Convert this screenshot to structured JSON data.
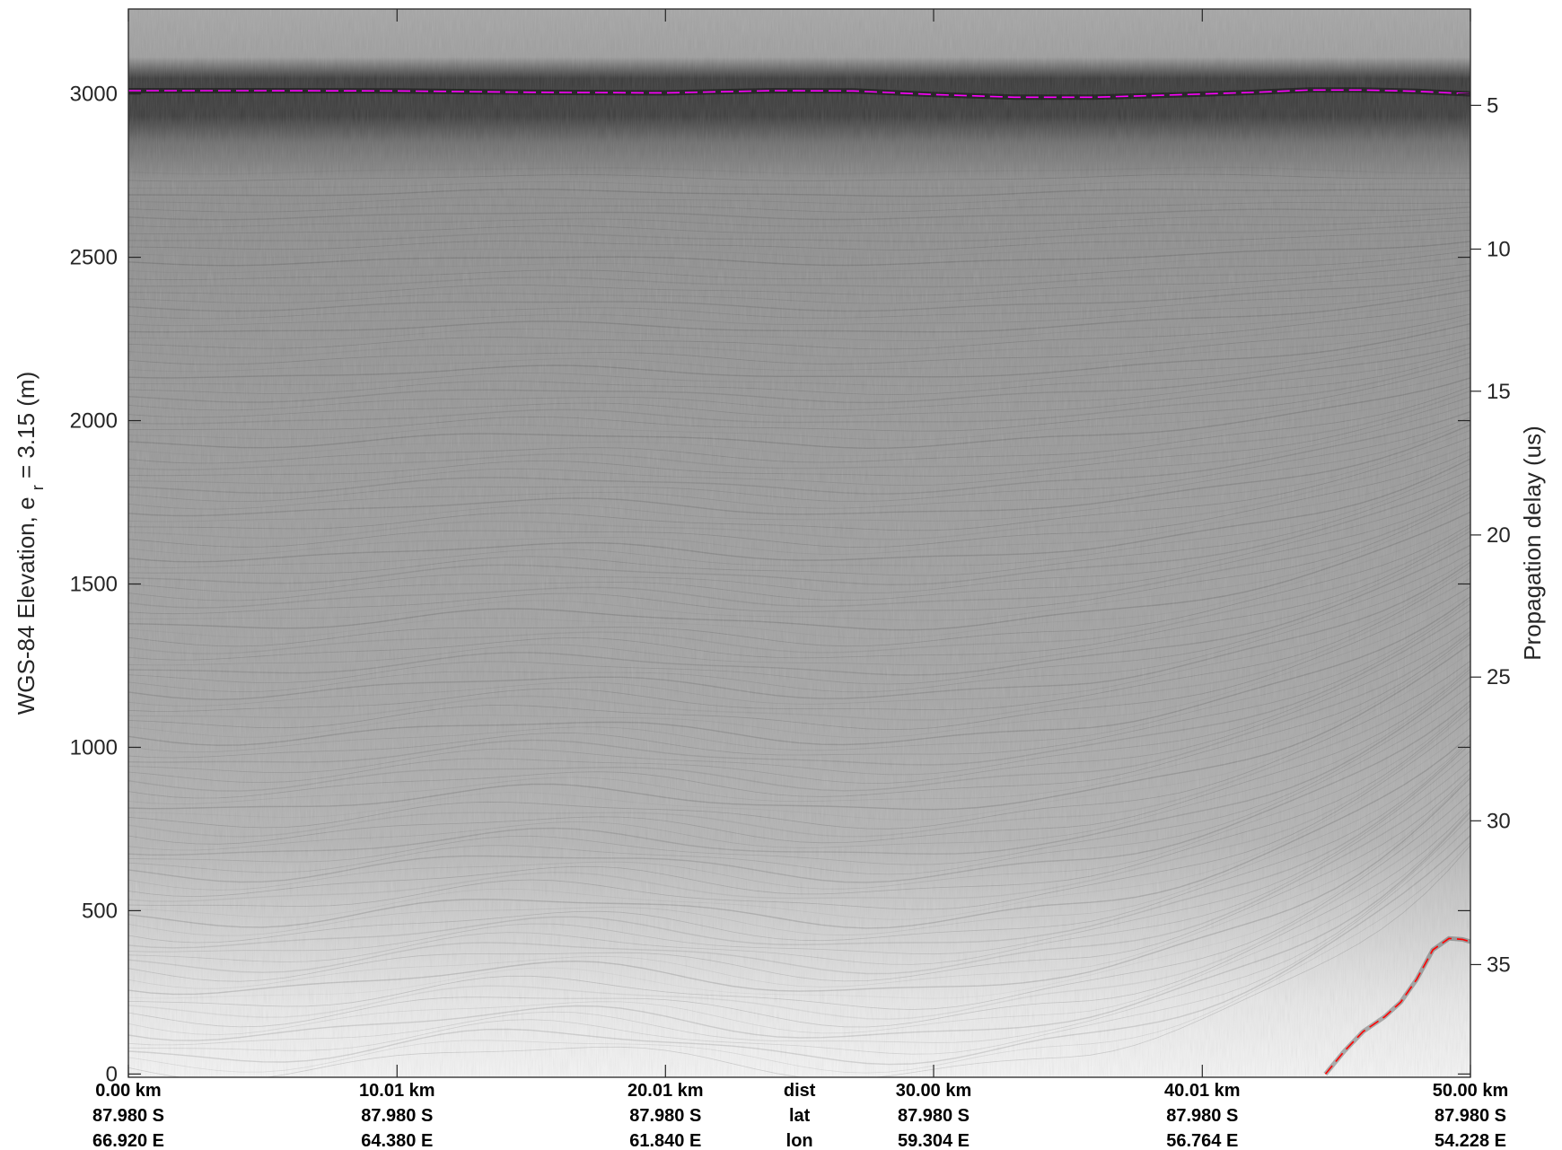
{
  "chart_data": {
    "type": "heatmap",
    "ylabel": "WGS-84 Elevation, e",
    "ylabel_sub": "r",
    "ylabel_tail": "= 3.15 (m)",
    "y2label": "Propagation delay (us)",
    "y_range": [
      -10,
      3260
    ],
    "y_ticks": [
      0,
      500,
      1000,
      1500,
      2000,
      2500,
      3000
    ],
    "y2_ticks": [
      5,
      10,
      15,
      20,
      25,
      30,
      35
    ],
    "y2_elevation_at_tick": {
      "5": 2965,
      "10": 2525,
      "15": 2090,
      "20": 1650,
      "25": 1215,
      "30": 775,
      "35": 335
    },
    "x_ticks": [
      {
        "dist": "0.00 km",
        "lat": "87.980 S",
        "lon": "66.920 E"
      },
      {
        "dist": "10.01 km",
        "lat": "87.980 S",
        "lon": "64.380 E"
      },
      {
        "dist": "20.01 km",
        "lat": "87.980 S",
        "lon": "61.840 E"
      },
      {
        "dist": "30.00 km",
        "lat": "87.980 S",
        "lon": "59.304 E"
      },
      {
        "dist": "40.01 km",
        "lat": "87.980 S",
        "lon": "56.764 E"
      },
      {
        "dist": "50.00 km",
        "lat": "87.980 S",
        "lon": "54.228 E"
      }
    ],
    "x_tick_km": [
      0,
      10.01,
      20.01,
      30.0,
      40.01,
      50.0
    ],
    "x_row_labels": {
      "dist": "dist",
      "lat": "lat",
      "lon": "lon"
    },
    "colormap": "grayscale",
    "surface_line": {
      "color": "#ff00ff",
      "style": "dashed",
      "x_km": [
        0,
        5,
        10,
        15,
        20,
        24,
        27,
        30,
        33,
        36,
        39,
        42,
        44,
        46,
        48,
        50
      ],
      "elevation_m": [
        3010,
        3010,
        3009,
        3005,
        3003,
        3010,
        3009,
        2998,
        2990,
        2990,
        2997,
        3005,
        3012,
        3012,
        3008,
        3000
      ]
    },
    "bottom_line": {
      "color": "#ff0000",
      "style": "dashed",
      "x_km": [
        44.6,
        45.3,
        46.0,
        46.8,
        47.4,
        48.0,
        48.6,
        49.2,
        49.7,
        50.0
      ],
      "elevation_m": [
        0,
        70,
        130,
        175,
        220,
        290,
        380,
        415,
        412,
        405
      ]
    }
  }
}
